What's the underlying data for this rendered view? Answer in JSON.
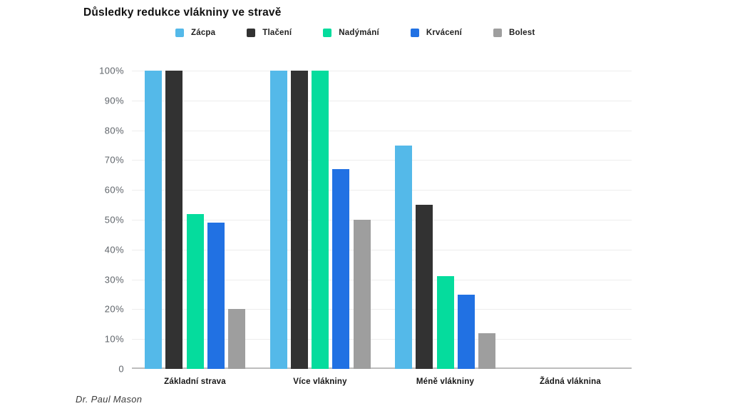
{
  "title": "Důsledky redukce vlákniny ve stravě",
  "footer": "Dr. Paul Mason",
  "colors": {
    "background": "#ffffff",
    "grid": "#ededed",
    "axis_line": "#bdbdbd",
    "tick_text": "#5f646a",
    "category_text": "#161616",
    "title_text": "#101010"
  },
  "chart_data": {
    "type": "bar",
    "title": "Důsledky redukce vlákniny ve stravě",
    "categories": [
      "Základní strava",
      "Více vlákniny",
      "Méně vlákniny",
      "Žádná vláknina"
    ],
    "series": [
      {
        "name": "Zácpa",
        "color": "#54B9E9",
        "values": [
          100,
          100,
          75,
          0
        ]
      },
      {
        "name": "Tlačení",
        "color": "#323232",
        "values": [
          100,
          100,
          55,
          0
        ]
      },
      {
        "name": "Nadýmání",
        "color": "#05DC9D",
        "values": [
          52,
          100,
          31,
          0
        ]
      },
      {
        "name": "Krvácení",
        "color": "#2171E3",
        "values": [
          49,
          67,
          25,
          0
        ]
      },
      {
        "name": "Bolest",
        "color": "#9E9E9E",
        "values": [
          20,
          50,
          12,
          0
        ]
      }
    ],
    "xlabel": "",
    "ylabel": "",
    "ylim": [
      0,
      100
    ],
    "yticks": [
      "0",
      "10%",
      "20%",
      "30%",
      "40%",
      "50%",
      "60%",
      "70%",
      "80%",
      "90%",
      "100%"
    ],
    "grid": "horizontal",
    "legend_position": "top",
    "attribution": "Dr. Paul Mason"
  }
}
